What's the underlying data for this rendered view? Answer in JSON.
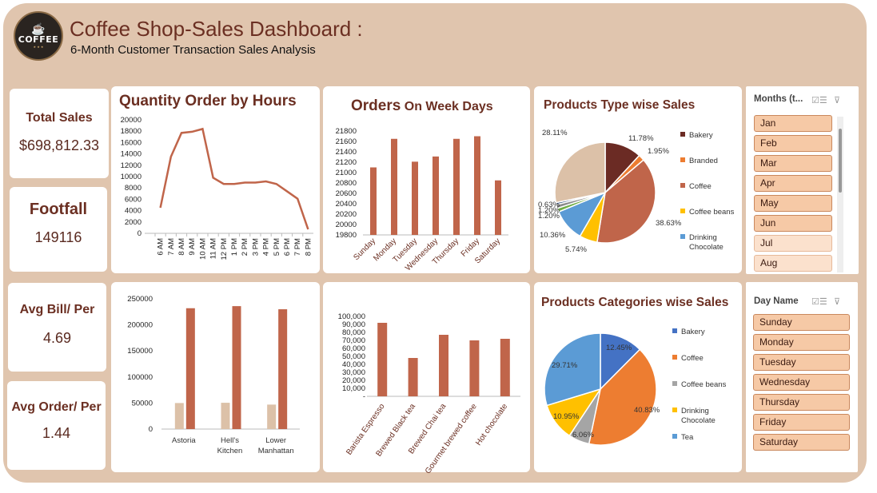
{
  "header": {
    "logo_text": "COFFEE",
    "title": "Coffee Shop-Sales Dashboard :",
    "subtitle": "6-Month Customer Transaction Sales Analysis"
  },
  "kpis": {
    "total_sales": {
      "label": "Total Sales",
      "value": "$698,812.33"
    },
    "footfall": {
      "label": "Footfall",
      "value": "149116"
    },
    "avg_bill": {
      "label": "Avg Bill/ Per",
      "value": "4.69"
    },
    "avg_order": {
      "label": "Avg Order/ Per",
      "value": "1.44"
    }
  },
  "colors": {
    "brand_dark": "#6b2f22",
    "series_main": "#c0654a",
    "series_light": "#dcc1a8",
    "frame": "#e0c5ae"
  },
  "slicers": {
    "months": {
      "title": "Months (t...",
      "items": [
        "Jan",
        "Feb",
        "Mar",
        "Apr",
        "May",
        "Jun",
        "Jul",
        "Aug"
      ]
    },
    "days": {
      "title": "Day Name",
      "items": [
        "Sunday",
        "Monday",
        "Tuesday",
        "Wednesday",
        "Thursday",
        "Friday",
        "Saturday"
      ]
    },
    "icons": [
      "multi-select-icon",
      "clear-filter-icon"
    ]
  },
  "chart_data": [
    {
      "id": "hours",
      "type": "line",
      "title": "Quantity Order by Hours",
      "categories": [
        "6 AM",
        "7 AM",
        "8 AM",
        "9 AM",
        "10 AM",
        "11 AM",
        "12 PM",
        "1 PM",
        "2 PM",
        "3 PM",
        "4 PM",
        "5 PM",
        "6 PM",
        "7 PM",
        "8 PM"
      ],
      "values": [
        4500,
        13500,
        17700,
        17900,
        18400,
        9800,
        8700,
        8700,
        8950,
        8950,
        9150,
        8700,
        7400,
        6100,
        700
      ],
      "yticks": [
        "0",
        "2000",
        "4000",
        "6000",
        "8000",
        "10000",
        "12000",
        "14000",
        "16000",
        "18000",
        "20000"
      ],
      "ylim": [
        0,
        20000
      ],
      "grid": false
    },
    {
      "id": "weekdays",
      "type": "bar",
      "title": "Orders",
      "title_suffix": "On Week Days",
      "categories": [
        "Sunday",
        "Monday",
        "Tuesday",
        "Wednesday",
        "Thursday",
        "Friday",
        "Saturday"
      ],
      "values": [
        21100,
        21650,
        21210,
        21310,
        21650,
        21700,
        20850
      ],
      "yticks": [
        "19800",
        "20000",
        "20200",
        "20400",
        "20600",
        "20800",
        "21000",
        "21200",
        "21400",
        "21600",
        "21800"
      ],
      "ylim": [
        19800,
        21800
      ]
    },
    {
      "id": "product_type",
      "type": "pie",
      "title": "Products Type wise  Sales",
      "legend": [
        "Bakery",
        "Branded",
        "Coffee",
        "Coffee beans",
        "Drinking Chocolate"
      ],
      "legend_colors": [
        "#6b2b24",
        "#ed7d31",
        "#c0654a",
        "#ffc000",
        "#5b9bd5"
      ],
      "slices": [
        {
          "value": 11.78,
          "label": "11.78%",
          "color": "#6b2b24"
        },
        {
          "value": 1.95,
          "label": "1.95%",
          "color": "#ed7d31"
        },
        {
          "value": 38.63,
          "label": "38.63%",
          "color": "#c0654a"
        },
        {
          "value": 5.74,
          "label": "5.74%",
          "color": "#ffc000"
        },
        {
          "value": 10.36,
          "label": "10.36%",
          "color": "#5b9bd5"
        },
        {
          "value": 1.2,
          "label": "1.20%",
          "color": "#70ad47"
        },
        {
          "value": 1.2,
          "label": "1.20%",
          "color": "#8a8a8a"
        },
        {
          "value": 0.63,
          "label": "0.63%",
          "color": "#264478"
        },
        {
          "value": 28.11,
          "label": "28.11%",
          "color": "#dcc1a8"
        }
      ],
      "legend_position": "right"
    },
    {
      "id": "stores",
      "type": "bar",
      "categories": [
        "Astoria",
        "Hell's Kitchen",
        "Lower Manhattan"
      ],
      "series": [
        {
          "values": [
            50000,
            50500,
            47000
          ],
          "color": "#dcc1a8"
        },
        {
          "values": [
            232000,
            236000,
            230000
          ],
          "color": "#c0654a"
        }
      ],
      "yticks": [
        "0",
        "50000",
        "100000",
        "150000",
        "200000",
        "250000"
      ],
      "ylim": [
        0,
        250000
      ]
    },
    {
      "id": "product_detail",
      "type": "bar",
      "categories": [
        "Barista Espresso",
        "Brewed Black tea",
        "Brewed Chai tea",
        "Gourmet brewed coffee",
        "Hot chocolate"
      ],
      "values": [
        92000,
        48000,
        77000,
        70000,
        72000
      ],
      "yticks": [
        "-",
        "10,000",
        "20,000",
        "30,000",
        "40,000",
        "50,000",
        "60,000",
        "70,000",
        "80,000",
        "90,000",
        "100,000"
      ],
      "ylim": [
        0,
        100000
      ]
    },
    {
      "id": "product_category",
      "type": "pie",
      "title": "Products Categories  wise Sales",
      "legend": [
        "Bakery",
        "Coffee",
        "Coffee beans",
        "Drinking Chocolate",
        "Tea"
      ],
      "legend_colors": [
        "#4472c4",
        "#ed7d31",
        "#a5a5a5",
        "#ffc000",
        "#5b9bd5"
      ],
      "slices": [
        {
          "value": 12.45,
          "label": "12.45%",
          "color": "#4472c4"
        },
        {
          "value": 40.83,
          "label": "40.83%",
          "color": "#ed7d31"
        },
        {
          "value": 6.06,
          "label": "6.06%",
          "color": "#a5a5a5"
        },
        {
          "value": 10.95,
          "label": "10.95%",
          "color": "#ffc000"
        },
        {
          "value": 29.71,
          "label": "29.71%",
          "color": "#5b9bd5"
        }
      ],
      "legend_position": "right"
    }
  ]
}
